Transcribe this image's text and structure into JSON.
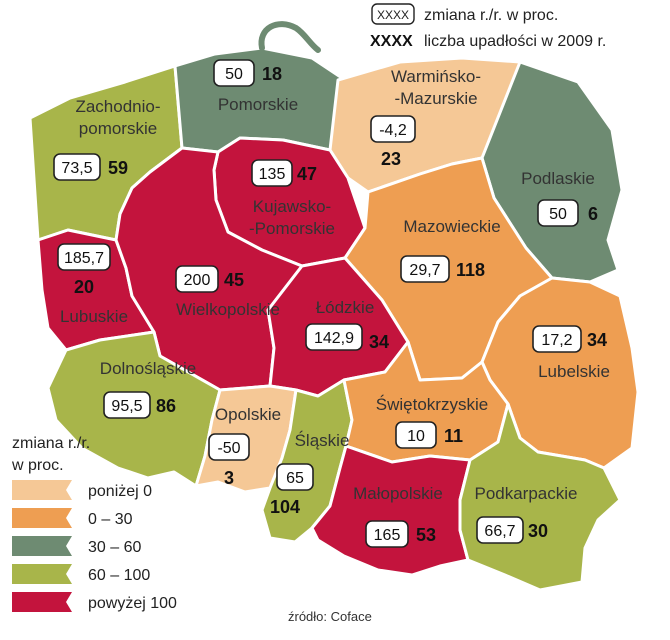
{
  "colors": {
    "below_0": "#F5C896",
    "0_30": "#EE9E52",
    "30_60": "#6E8B72",
    "60_100": "#A8B54A",
    "above_100": "#C3143D"
  },
  "key": {
    "change_sample": "XXXX",
    "change_label": "zmiana r./r. w proc.",
    "count_sample": "XXXX",
    "count_label": "liczba upadłości w 2009 r."
  },
  "legend": {
    "title_line1": "zmiana r./r.",
    "title_line2": "w proc.",
    "items": [
      {
        "label": "poniżej 0",
        "color_key": "below_0"
      },
      {
        "label": "0 – 30",
        "color_key": "0_30"
      },
      {
        "label": "30 – 60",
        "color_key": "30_60"
      },
      {
        "label": "60 – 100",
        "color_key": "60_100"
      },
      {
        "label": "powyżej 100",
        "color_key": "above_100"
      }
    ]
  },
  "source": "źródło: Coface",
  "regions": {
    "zachodniopomorskie": {
      "name_lines": [
        "Zachodnio-",
        "pomorskie"
      ],
      "change": "73,5",
      "count": "59",
      "color_key": "60_100"
    },
    "pomorskie": {
      "name_lines": [
        "Pomorskie"
      ],
      "change": "50",
      "count": "18",
      "color_key": "30_60"
    },
    "warminsko_mazurskie": {
      "name_lines": [
        "Warmińsko-",
        "-Mazurskie"
      ],
      "change": "-4,2",
      "count": "23",
      "color_key": "below_0"
    },
    "podlaskie": {
      "name_lines": [
        "Podlaskie"
      ],
      "change": "50",
      "count": "6",
      "color_key": "30_60"
    },
    "kujawsko_pomorskie": {
      "name_lines": [
        "Kujawsko-",
        "-Pomorskie"
      ],
      "change": "135",
      "count": "47",
      "color_key": "above_100"
    },
    "mazowieckie": {
      "name_lines": [
        "Mazowieckie"
      ],
      "change": "29,7",
      "count": "118",
      "color_key": "0_30"
    },
    "lubuskie": {
      "name_lines": [
        "Lubuskie"
      ],
      "change": "185,7",
      "count": "20",
      "color_key": "above_100"
    },
    "wielkopolskie": {
      "name_lines": [
        "Wielkopolskie"
      ],
      "change": "200",
      "count": "45",
      "color_key": "above_100"
    },
    "lodzkie": {
      "name_lines": [
        "Łódzkie"
      ],
      "change": "142,9",
      "count": "34",
      "color_key": "above_100"
    },
    "lubelskie": {
      "name_lines": [
        "Lubelskie"
      ],
      "change": "17,2",
      "count": "34",
      "color_key": "0_30"
    },
    "dolnoslaskie": {
      "name_lines": [
        "Dolnośląskie"
      ],
      "change": "95,5",
      "count": "86",
      "color_key": "60_100"
    },
    "opolskie": {
      "name_lines": [
        "Opolskie"
      ],
      "change": "-50",
      "count": "3",
      "color_key": "below_0"
    },
    "slaskie": {
      "name_lines": [
        "Śląskie"
      ],
      "change": "65",
      "count": "104",
      "color_key": "60_100"
    },
    "swietokrzyskie": {
      "name_lines": [
        "Świętokrzyskie"
      ],
      "change": "10",
      "count": "11",
      "color_key": "0_30"
    },
    "malopolskie": {
      "name_lines": [
        "Małopolskie"
      ],
      "change": "165",
      "count": "53",
      "color_key": "above_100"
    },
    "podkarpackie": {
      "name_lines": [
        "Podkarpackie"
      ],
      "change": "66,7",
      "count": "30",
      "color_key": "60_100"
    }
  }
}
